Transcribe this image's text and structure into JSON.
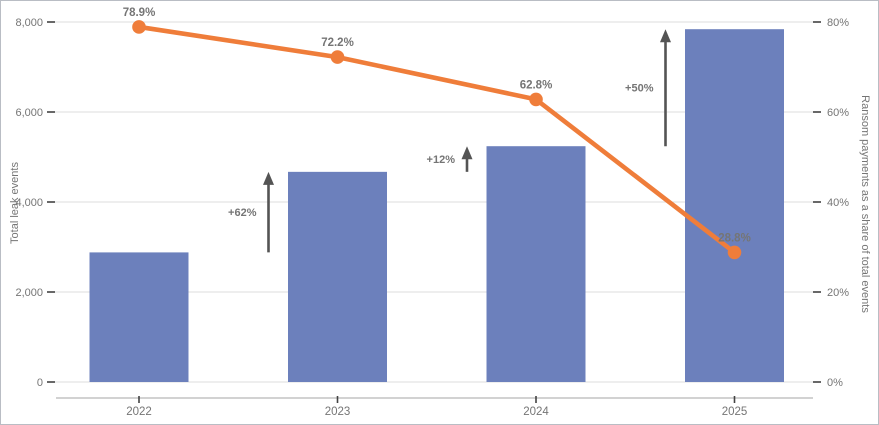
{
  "chart_data": {
    "type": "combo",
    "categories": [
      "2022",
      "2023",
      "2024",
      "2025"
    ],
    "series": [
      {
        "name": "Total leak events",
        "type": "bar",
        "axis": "left",
        "values": [
          2880,
          4670,
          5240,
          7840
        ],
        "color": "#6c80bc"
      },
      {
        "name": "Ransom payments as a share of total events",
        "type": "line",
        "axis": "right",
        "values": [
          78.9,
          72.2,
          62.8,
          28.8
        ],
        "labels": [
          "78.9%",
          "72.2%",
          "62.8%",
          "28.8%"
        ],
        "color": "#ef7d3a"
      }
    ],
    "annotations": [
      {
        "label": "+62%",
        "between": [
          0,
          1
        ]
      },
      {
        "label": "+12%",
        "between": [
          1,
          2
        ]
      },
      {
        "label": "+50%",
        "between": [
          2,
          3
        ]
      }
    ],
    "left_axis": {
      "title": "Total leak events",
      "ticks": [
        "8,000",
        "6,000",
        "4,000",
        "2,000",
        "0"
      ],
      "tick_values": [
        8000,
        6000,
        4000,
        2000,
        0
      ],
      "max": 8000
    },
    "right_axis": {
      "title": "Ransom payments as a share of total events",
      "ticks": [
        "80%",
        "60%",
        "40%",
        "20%",
        "0%"
      ],
      "tick_values": [
        80,
        60,
        40,
        20,
        0
      ],
      "max": 80
    },
    "grid": true,
    "legend": "none"
  },
  "style": {
    "grid_color": "#dcdcdc",
    "tick_color": "#424242",
    "axis_line_color": "#b7b7b7",
    "arrow_color": "#545454",
    "text_color": "#757575",
    "bar_color": "#6c80bc",
    "line_color": "#ef7d3a",
    "background": "#ffffff"
  }
}
